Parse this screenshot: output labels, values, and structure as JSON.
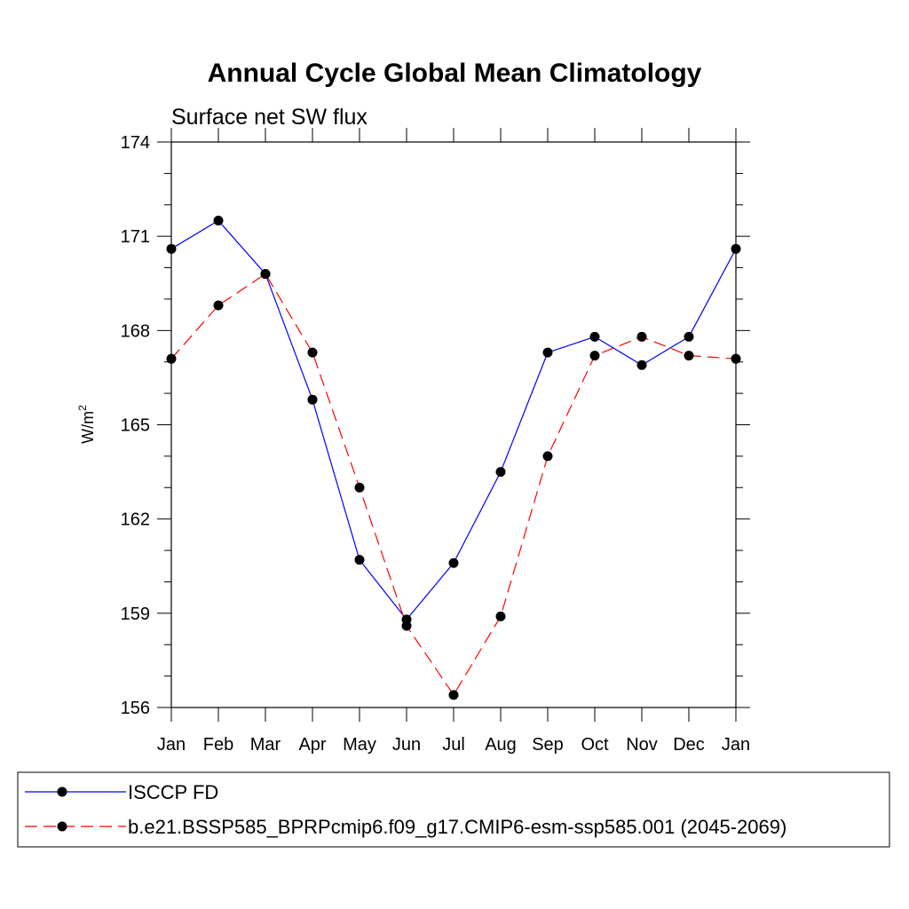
{
  "chart_data": {
    "type": "line",
    "title": "Annual Cycle Global Mean Climatology",
    "subtitle": "Surface net SW flux",
    "xlabel": "",
    "ylabel": "W/m",
    "ylabel_sup": "2",
    "categories": [
      "Jan",
      "Feb",
      "Mar",
      "Apr",
      "May",
      "Jun",
      "Jul",
      "Aug",
      "Sep",
      "Oct",
      "Nov",
      "Dec",
      "Jan"
    ],
    "ylim": [
      156,
      174
    ],
    "yticks": [
      156,
      159,
      162,
      165,
      168,
      171,
      174
    ],
    "ytick_labels": [
      "156",
      "159",
      "162",
      "165",
      "168",
      "171",
      "174"
    ],
    "grid": false,
    "legend_position": "bottom",
    "series": [
      {
        "name": "ISCCP FD",
        "color": "#0000ff",
        "dash": "solid",
        "values": [
          170.6,
          171.5,
          169.8,
          165.8,
          160.7,
          158.8,
          160.6,
          163.5,
          167.3,
          167.8,
          166.9,
          167.8,
          170.6
        ]
      },
      {
        "name": "b.e21.BSSP585_BPRPcmip6.f09_g17.CMIP6-esm-ssp585.001 (2045-2069)",
        "color": "#ff0000",
        "dash": "dashed",
        "values": [
          167.1,
          168.8,
          169.8,
          167.3,
          163.0,
          158.6,
          156.4,
          158.9,
          164.0,
          167.2,
          167.8,
          167.2,
          167.1
        ]
      }
    ]
  }
}
